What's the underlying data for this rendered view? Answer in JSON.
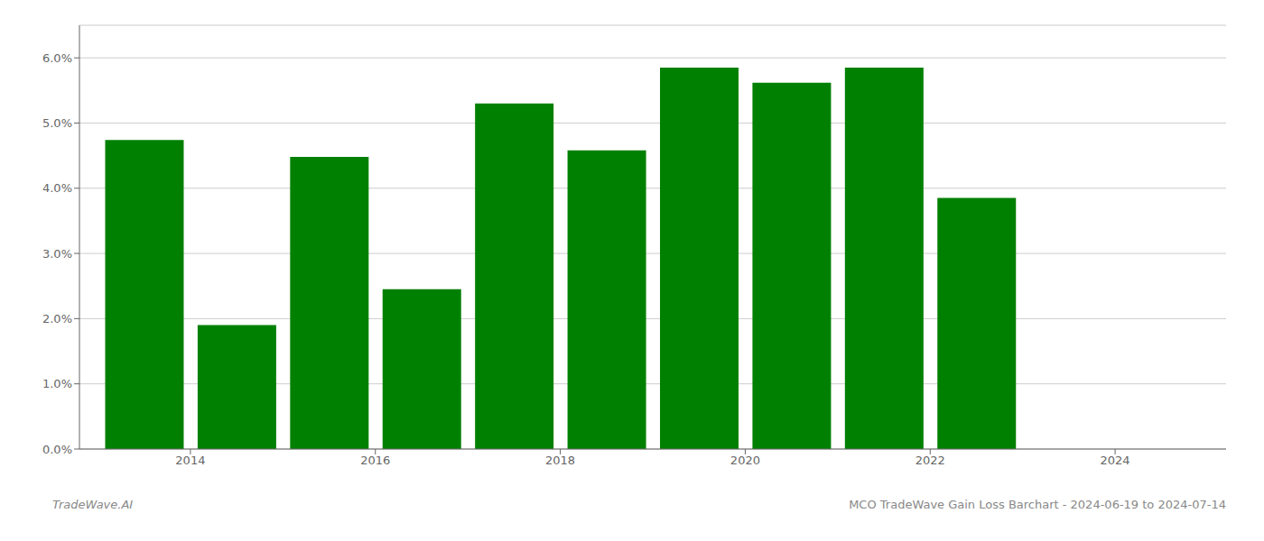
{
  "chart_data": {
    "type": "bar",
    "x": [
      2013,
      2014,
      2015,
      2016,
      2017,
      2018,
      2019,
      2020,
      2021,
      2022,
      2023
    ],
    "values": [
      0.0474,
      0.019,
      0.0448,
      0.0245,
      0.053,
      0.0458,
      0.0585,
      0.0562,
      0.0585,
      0.0385,
      0.0
    ],
    "color": "#008000",
    "xlim": [
      2012.3,
      2024.7
    ],
    "xticks": [
      {
        "value": 2013.5,
        "label": "2014"
      },
      {
        "value": 2015.5,
        "label": "2016"
      },
      {
        "value": 2017.5,
        "label": "2018"
      },
      {
        "value": 2019.5,
        "label": "2020"
      },
      {
        "value": 2021.5,
        "label": "2022"
      },
      {
        "value": 2023.5,
        "label": "2024"
      }
    ],
    "ylim": [
      0.0,
      0.065
    ],
    "yticks": [
      {
        "value": 0.0,
        "label": "0.0%"
      },
      {
        "value": 0.01,
        "label": "1.0%"
      },
      {
        "value": 0.02,
        "label": "2.0%"
      },
      {
        "value": 0.03,
        "label": "3.0%"
      },
      {
        "value": 0.04,
        "label": "4.0%"
      },
      {
        "value": 0.05,
        "label": "5.0%"
      },
      {
        "value": 0.06,
        "label": "6.0%"
      }
    ],
    "grid": true,
    "annotations": [
      "TradeWave.AI",
      "MCO TradeWave Gain Loss Barchart - 2024-06-19 to 2024-07-14"
    ]
  }
}
